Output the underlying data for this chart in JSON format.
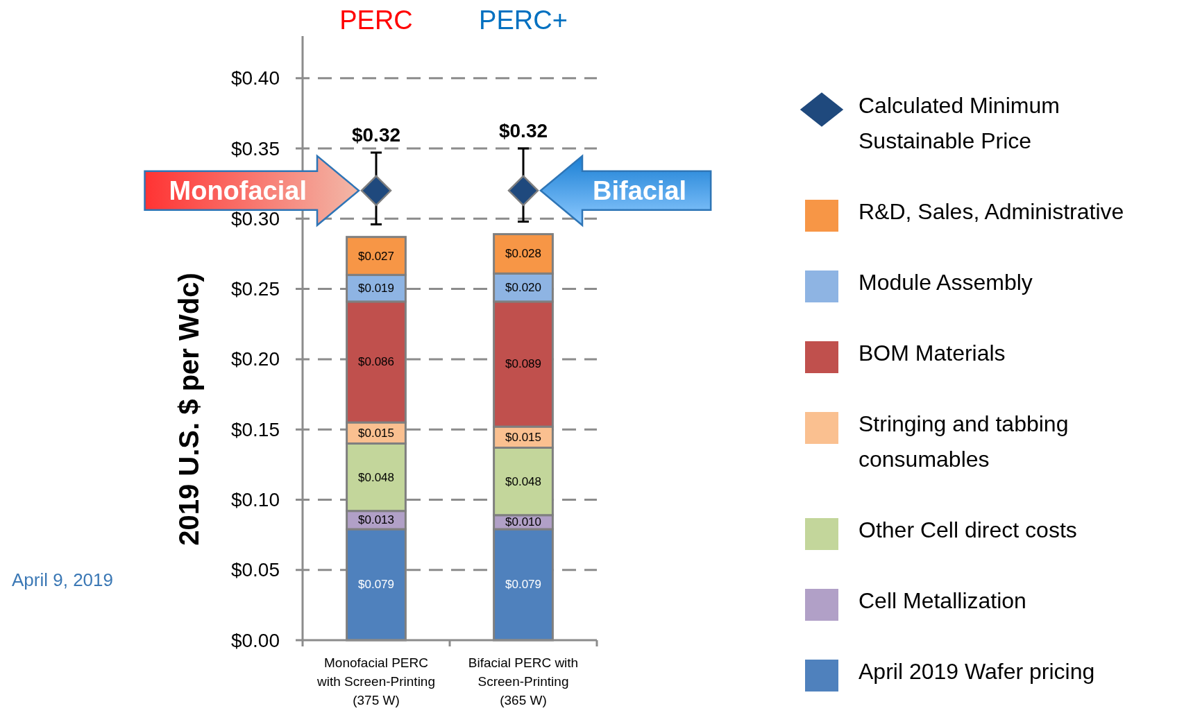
{
  "chart_data": {
    "type": "bar",
    "stacked": true,
    "categories": [
      "Monofacial PERC with Screen-Printing (375 W)",
      "Bifacial PERC with Screen-Printing (365 W)"
    ],
    "ylabel": "2019 U.S. $ per Wdc)",
    "ylim": [
      0,
      0.43
    ],
    "yticks": [
      {
        "value": 0,
        "label": "$0.00"
      },
      {
        "value": 0.05,
        "label": "$0.05"
      },
      {
        "value": 0.1,
        "label": "$0.10"
      },
      {
        "value": 0.15,
        "label": "$0.15"
      },
      {
        "value": 0.2,
        "label": "$0.20"
      },
      {
        "value": 0.25,
        "label": "$0.25"
      },
      {
        "value": 0.3,
        "label": "$0.30"
      },
      {
        "value": 0.35,
        "label": "$0.35"
      },
      {
        "value": 0.4,
        "label": "$0.40"
      }
    ],
    "grid": "y",
    "legend": "right",
    "series": [
      {
        "name": "April 2019 Wafer pricing",
        "color": "#4f81bd",
        "values": [
          0.079,
          0.079
        ],
        "value_labels": [
          "$0.079",
          "$0.079"
        ]
      },
      {
        "name": "Cell Metallization",
        "color": "#b1a0c7",
        "values": [
          0.013,
          0.01
        ],
        "value_labels": [
          "$0.013",
          "$0.010"
        ]
      },
      {
        "name": "Other Cell direct costs",
        "color": "#c3d69b",
        "values": [
          0.048,
          0.048
        ],
        "value_labels": [
          "$0.048",
          "$0.048"
        ]
      },
      {
        "name": "Stringing and tabbing consumables",
        "color": "#fac090",
        "values": [
          0.015,
          0.015
        ],
        "value_labels": [
          "$0.015",
          "$0.015"
        ]
      },
      {
        "name": "BOM Materials",
        "color": "#c0504d",
        "values": [
          0.086,
          0.089
        ],
        "value_labels": [
          "$0.086",
          "$0.089"
        ]
      },
      {
        "name": "Module Assembly",
        "color": "#8eb4e3",
        "values": [
          0.019,
          0.02
        ],
        "value_labels": [
          "$0.019",
          "$0.020"
        ]
      },
      {
        "name": "R&D, Sales, Administrative",
        "color": "#f79646",
        "values": [
          0.027,
          0.028
        ],
        "value_labels": [
          "$0.027",
          "$0.028"
        ]
      },
      {
        "name": "Calculated Minimum Sustainable Price",
        "type": "scatter",
        "marker": "diamond",
        "color": "#1f497d",
        "values": [
          0.32,
          0.32
        ],
        "errors": [
          [
            0.296,
            0.347
          ],
          [
            0.298,
            0.35
          ]
        ],
        "value_labels": [
          "$0.32",
          "$0.32"
        ]
      }
    ],
    "annotations": [
      "PERC",
      "PERC+",
      {
        "text": "Monofacial",
        "x": "Monofacial PERC with Screen-Printing (375 W)",
        "y": 0.32
      },
      {
        "text": "Bifacial",
        "x": "Bifacial PERC with Screen-Printing (365 W)",
        "y": 0.32
      },
      "April 9, 2019"
    ]
  }
}
